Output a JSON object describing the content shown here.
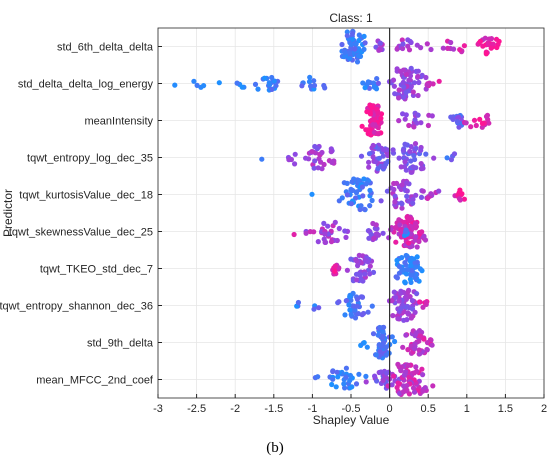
{
  "chart_data": {
    "type": "scatter",
    "subtype": "shap-swarm",
    "title": "Class: 1",
    "xlabel": "Shapley Value",
    "ylabel": "Predictor",
    "xlim": [
      -3,
      2
    ],
    "xticks": [
      -3,
      -2.5,
      -2,
      -1.5,
      -1,
      -0.5,
      0,
      0.5,
      1,
      1.5,
      2
    ],
    "xtick_labels": [
      "-3",
      "-2.5",
      "-2",
      "-1.5",
      "-1",
      "-0.5",
      "0",
      "0.5",
      "1",
      "1.5",
      "2"
    ],
    "grid": true,
    "zero_line": true,
    "color_low": "#1e90ff",
    "color_mid": "#8a4be6",
    "color_high": "#ff1493",
    "predictors": [
      {
        "name": "std_6th_delta_delta",
        "clusters": [
          {
            "x": -0.45,
            "spread": 0.18,
            "n": 55,
            "color": 0.15
          },
          {
            "x": -0.15,
            "spread": 0.08,
            "n": 10,
            "color": 0.55
          },
          {
            "x": 0.25,
            "spread": 0.3,
            "n": 16,
            "color": 0.6
          },
          {
            "x": 0.8,
            "spread": 0.25,
            "n": 10,
            "color": 0.8
          },
          {
            "x": 1.3,
            "spread": 0.18,
            "n": 22,
            "color": 0.9
          }
        ]
      },
      {
        "name": "std_delta_delta_log_energy",
        "clusters": [
          {
            "x": -2.8,
            "spread": 0.02,
            "n": 1,
            "color": 0.1
          },
          {
            "x": -2.45,
            "spread": 0.12,
            "n": 4,
            "color": 0.1
          },
          {
            "x": -2.0,
            "spread": 0.2,
            "n": 5,
            "color": 0.1
          },
          {
            "x": -1.6,
            "spread": 0.22,
            "n": 18,
            "color": 0.1
          },
          {
            "x": -1.0,
            "spread": 0.3,
            "n": 12,
            "color": 0.15
          },
          {
            "x": -0.2,
            "spread": 0.15,
            "n": 12,
            "color": 0.15
          },
          {
            "x": 0.2,
            "spread": 0.22,
            "n": 70,
            "color": 0.55
          },
          {
            "x": 0.55,
            "spread": 0.1,
            "n": 6,
            "color": 0.75
          }
        ]
      },
      {
        "name": "meanIntensity",
        "clusters": [
          {
            "x": -0.2,
            "spread": 0.12,
            "n": 60,
            "color": 0.95
          },
          {
            "x": 0.3,
            "spread": 0.25,
            "n": 18,
            "color": 0.6
          },
          {
            "x": 0.9,
            "spread": 0.12,
            "n": 14,
            "color": 0.35
          },
          {
            "x": 1.15,
            "spread": 0.25,
            "n": 14,
            "color": 0.9
          }
        ]
      },
      {
        "name": "tqwt_entropy_log_dec_35",
        "clusters": [
          {
            "x": -1.65,
            "spread": 0.02,
            "n": 1,
            "color": 0.1
          },
          {
            "x": -1.3,
            "spread": 0.05,
            "n": 3,
            "color": 0.5
          },
          {
            "x": -0.9,
            "spread": 0.35,
            "n": 30,
            "color": 0.6
          },
          {
            "x": -0.15,
            "spread": 0.18,
            "n": 40,
            "color": 0.45
          },
          {
            "x": 0.3,
            "spread": 0.25,
            "n": 45,
            "color": 0.45
          },
          {
            "x": 0.8,
            "spread": 0.08,
            "n": 4,
            "color": 0.3
          }
        ]
      },
      {
        "name": "tqwt_kurtosisValue_dec_18",
        "clusters": [
          {
            "x": -1.0,
            "spread": 0.02,
            "n": 1,
            "color": 0.1
          },
          {
            "x": -0.4,
            "spread": 0.25,
            "n": 55,
            "color": 0.15
          },
          {
            "x": 0.15,
            "spread": 0.25,
            "n": 40,
            "color": 0.55
          },
          {
            "x": 0.5,
            "spread": 0.15,
            "n": 8,
            "color": 0.7
          },
          {
            "x": 0.9,
            "spread": 0.12,
            "n": 10,
            "color": 0.95
          }
        ]
      },
      {
        "name": "tqwt_skewnessValue_dec_25",
        "clusters": [
          {
            "x": -1.25,
            "spread": 0.02,
            "n": 1,
            "color": 0.7
          },
          {
            "x": -0.8,
            "spread": 0.3,
            "n": 30,
            "color": 0.6
          },
          {
            "x": -0.2,
            "spread": 0.15,
            "n": 20,
            "color": 0.55
          },
          {
            "x": 0.25,
            "spread": 0.2,
            "n": 100,
            "color": 0.8
          },
          {
            "x": 0.2,
            "spread": 0.05,
            "n": 6,
            "color": 0.1
          }
        ]
      },
      {
        "name": "tqwt_TKEO_std_dec_7",
        "clusters": [
          {
            "x": -0.7,
            "spread": 0.08,
            "n": 10,
            "color": 0.85
          },
          {
            "x": -0.4,
            "spread": 0.18,
            "n": 40,
            "color": 0.5
          },
          {
            "x": 0.25,
            "spread": 0.17,
            "n": 60,
            "color": 0.1
          }
        ]
      },
      {
        "name": "tqwt_entropy_shannon_dec_36",
        "clusters": [
          {
            "x": -1.2,
            "spread": 0.05,
            "n": 3,
            "color": 0.1
          },
          {
            "x": -0.95,
            "spread": 0.05,
            "n": 3,
            "color": 0.2
          },
          {
            "x": -0.45,
            "spread": 0.22,
            "n": 35,
            "color": 0.2
          },
          {
            "x": 0.2,
            "spread": 0.2,
            "n": 60,
            "color": 0.55
          },
          {
            "x": 0.45,
            "spread": 0.07,
            "n": 6,
            "color": 0.85
          }
        ]
      },
      {
        "name": "std_9th_delta",
        "clusters": [
          {
            "x": -0.35,
            "spread": 0.05,
            "n": 3,
            "color": 0.1
          },
          {
            "x": -0.1,
            "spread": 0.14,
            "n": 45,
            "color": 0.2
          },
          {
            "x": 0.35,
            "spread": 0.18,
            "n": 35,
            "color": 0.75
          },
          {
            "x": 0.55,
            "spread": 0.05,
            "n": 5,
            "color": 0.8
          }
        ]
      },
      {
        "name": "mean_MFCC_2nd_coef",
        "clusters": [
          {
            "x": -0.95,
            "spread": 0.02,
            "n": 1,
            "color": 0.1
          },
          {
            "x": -0.55,
            "spread": 0.3,
            "n": 30,
            "color": 0.15
          },
          {
            "x": -0.05,
            "spread": 0.15,
            "n": 25,
            "color": 0.5
          },
          {
            "x": 0.25,
            "spread": 0.25,
            "n": 70,
            "color": 0.75
          }
        ]
      }
    ]
  },
  "caption": "(b)"
}
